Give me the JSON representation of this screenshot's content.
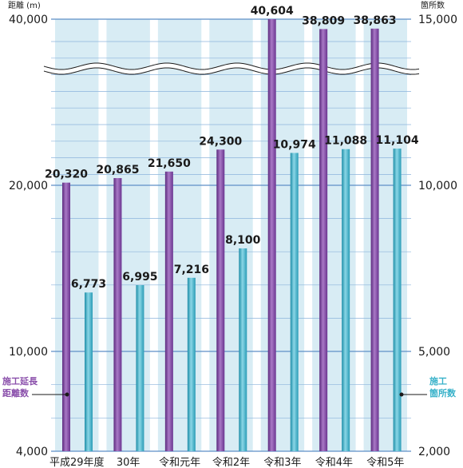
{
  "chart_data": {
    "type": "bar",
    "categories": [
      "平成29年度",
      "30年",
      "令和元年",
      "令和2年",
      "令和3年",
      "令和4年",
      "令和5年"
    ],
    "series": [
      {
        "name": "施工延長距離数",
        "axis": "left",
        "values": [
          20320,
          20865,
          21650,
          24300,
          40604,
          38809,
          38863
        ],
        "labels": [
          "20,320",
          "20,865",
          "21,650",
          "24,300",
          "40,604",
          "38,809",
          "38,863"
        ]
      },
      {
        "name": "施工箇所数",
        "axis": "right",
        "values": [
          6773,
          6995,
          7216,
          8100,
          10974,
          11088,
          11104
        ],
        "labels": [
          "6,773",
          "6,995",
          "7,216",
          "8,100",
          "10,974",
          "11,088",
          "11,104"
        ]
      }
    ],
    "left_axis": {
      "unit": "距離 (m)",
      "ticks": [
        "40,000",
        "20,000",
        "10,000",
        "4,000"
      ],
      "range": [
        4000,
        40000
      ],
      "broken": true
    },
    "right_axis": {
      "unit": "箇所数",
      "ticks": [
        "15,000",
        "10,000",
        "5,000",
        "2,000"
      ],
      "range": [
        2000,
        15000
      ]
    },
    "legend_left": [
      "施工延長",
      "距離数"
    ],
    "legend_right": [
      "施工",
      "箇所数"
    ],
    "colors": {
      "series1": "#8a4fab",
      "series2": "#36b1c9",
      "band": "#d8ecf4",
      "grid": "#8cb4dc"
    },
    "grid": true
  }
}
